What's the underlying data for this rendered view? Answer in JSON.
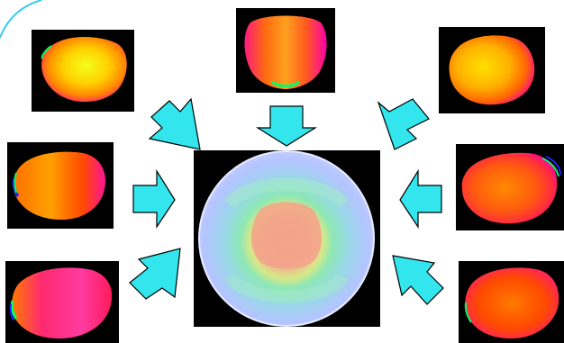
{
  "colors": {
    "background": "#ffffff",
    "thumbnail_frame": "#000000",
    "arrow_fill": "#33e6ee",
    "arrow_stroke": "#000000",
    "corner_arc": "#33ccee",
    "disc_outer": "#b8c8ff",
    "disc_mid": "#7ee0c8",
    "disc_core": "#f0a898"
  },
  "icons": {
    "arrow": "block-arrow-icon",
    "corner": "corner-arc-icon"
  },
  "thumbnails": [
    {
      "id": "top-left",
      "palette": [
        "#ffff00",
        "#ff7700",
        "#ff1493"
      ]
    },
    {
      "id": "top-center",
      "palette": [
        "#ff8c00",
        "#ff2a6d",
        "#ff00aa"
      ]
    },
    {
      "id": "top-right",
      "palette": [
        "#ffcc00",
        "#ff6600",
        "#ff1080"
      ]
    },
    {
      "id": "mid-left",
      "palette": [
        "#ffa000",
        "#ff4a00",
        "#ff1493"
      ]
    },
    {
      "id": "mid-right",
      "palette": [
        "#ff7a00",
        "#ff3000",
        "#ff00aa"
      ]
    },
    {
      "id": "bottom-left",
      "palette": [
        "#ff3aa0",
        "#ff1a5a",
        "#ff7a00"
      ]
    },
    {
      "id": "bottom-right",
      "palette": [
        "#ff7000",
        "#ff3300",
        "#ff1a70"
      ]
    }
  ]
}
